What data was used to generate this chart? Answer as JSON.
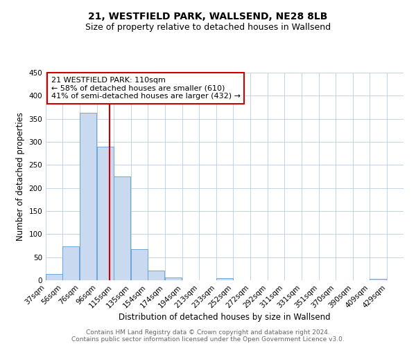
{
  "title": "21, WESTFIELD PARK, WALLSEND, NE28 8LB",
  "subtitle": "Size of property relative to detached houses in Wallsend",
  "xlabel": "Distribution of detached houses by size in Wallsend",
  "ylabel": "Number of detached properties",
  "bar_left_edges": [
    37,
    56,
    76,
    96,
    115,
    135,
    154,
    174,
    194,
    213,
    233,
    252,
    272,
    292,
    311,
    331,
    351,
    370,
    390,
    409
  ],
  "bar_heights": [
    13,
    73,
    363,
    289,
    225,
    68,
    21,
    6,
    0,
    0,
    4,
    0,
    0,
    0,
    0,
    0,
    0,
    0,
    0,
    3
  ],
  "bin_width": 19,
  "bar_facecolor": "#c9daf0",
  "bar_edgecolor": "#5b9bd5",
  "vline_x": 110,
  "vline_color": "#cc0000",
  "annotation_title": "21 WESTFIELD PARK: 110sqm",
  "annotation_line1": "← 58% of detached houses are smaller (610)",
  "annotation_line2": "41% of semi-detached houses are larger (432) →",
  "annotation_box_edgecolor": "#cc0000",
  "xlim": [
    37,
    448
  ],
  "ylim": [
    0,
    450
  ],
  "yticks": [
    0,
    50,
    100,
    150,
    200,
    250,
    300,
    350,
    400,
    450
  ],
  "xtick_labels": [
    "37sqm",
    "56sqm",
    "76sqm",
    "96sqm",
    "115sqm",
    "135sqm",
    "154sqm",
    "174sqm",
    "194sqm",
    "213sqm",
    "233sqm",
    "252sqm",
    "272sqm",
    "292sqm",
    "311sqm",
    "331sqm",
    "351sqm",
    "370sqm",
    "390sqm",
    "409sqm",
    "429sqm"
  ],
  "xtick_positions": [
    37,
    56,
    76,
    96,
    115,
    135,
    154,
    174,
    194,
    213,
    233,
    252,
    272,
    292,
    311,
    331,
    351,
    370,
    390,
    409,
    429
  ],
  "footer_line1": "Contains HM Land Registry data © Crown copyright and database right 2024.",
  "footer_line2": "Contains public sector information licensed under the Open Government Licence v3.0.",
  "bg_color": "#ffffff",
  "grid_color": "#b8cfe0",
  "title_fontsize": 10,
  "subtitle_fontsize": 9,
  "axis_label_fontsize": 8.5,
  "tick_fontsize": 7.5,
  "annotation_fontsize": 8,
  "footer_fontsize": 6.5
}
